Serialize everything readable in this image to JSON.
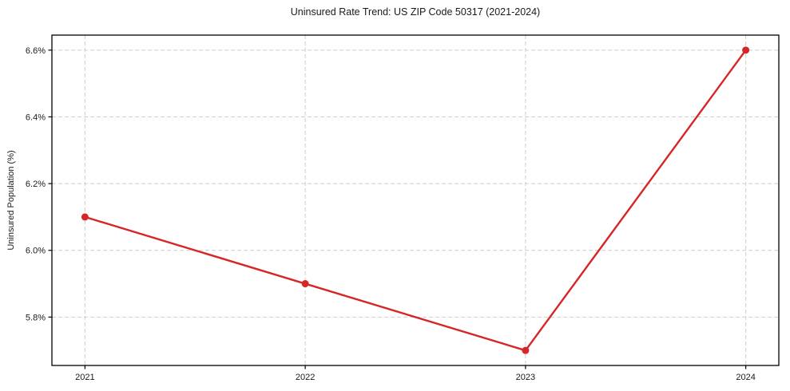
{
  "chart_data": {
    "type": "line",
    "title": "Uninsured Rate Trend: US ZIP Code 50317 (2021-2024)",
    "xlabel": "",
    "ylabel": "Uninsured Population (%)",
    "x": [
      2021,
      2022,
      2023,
      2024
    ],
    "x_tick_labels": [
      "2021",
      "2022",
      "2023",
      "2024"
    ],
    "series": [
      {
        "name": "Uninsured Population (%)",
        "values": [
          6.1,
          5.9,
          5.7,
          6.6
        ]
      }
    ],
    "y_tick_values": [
      5.8,
      6.0,
      6.2,
      6.4,
      6.6
    ],
    "y_tick_labels": [
      "5.8%",
      "6.0%",
      "6.2%",
      "6.4%",
      "6.6%"
    ],
    "xlim": [
      2020.85,
      2024.15
    ],
    "ylim": [
      5.655,
      6.645
    ],
    "grid": true,
    "grid_style": "dashed",
    "legend_position": "none",
    "marker": "circle"
  },
  "colors": {
    "line": "#d62728",
    "marker": "#d62728",
    "grid": "#cdcdcd",
    "axis": "#000000",
    "tick_text": "#1a1a1a",
    "title_text": "#1a1a1a",
    "background": "#ffffff"
  }
}
